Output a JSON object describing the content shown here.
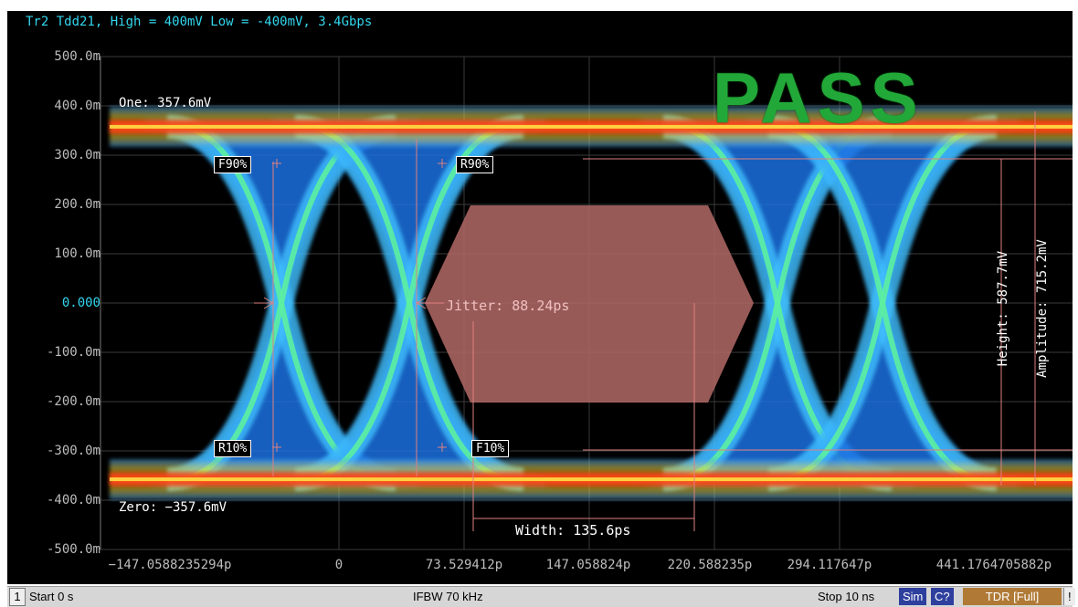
{
  "trace_title": "Tr2 Tdd21, High = 400mV Low = -400mV, 3.4Gbps",
  "pass_label": "PASS",
  "y_axis": {
    "ticks": [
      "500.0m",
      "400.0m",
      "300.0m",
      "200.0m",
      "100.0m",
      "0.000",
      "-100.0m",
      "-200.0m",
      "-300.0m",
      "-400.0m",
      "-500.0m"
    ],
    "tick_values": [
      500,
      400,
      300,
      200,
      100,
      0,
      -100,
      -200,
      -300,
      -400,
      -500
    ],
    "range": [
      -500,
      500
    ]
  },
  "x_axis": {
    "ticks": [
      "−147.0588235294p",
      "0",
      "73.529412p",
      "147.058824p",
      "220.588235p",
      "294.117647p",
      "441.1764705882p"
    ],
    "tick_values": [
      -147.0588235294,
      0,
      73.529412,
      147.058824,
      220.588235,
      294.117647,
      441.1764705882
    ]
  },
  "markers": {
    "one_level": "One: 357.6mV",
    "zero_level": "Zero: −357.6mV",
    "f90": "F90%",
    "r90": "R90%",
    "r10": "R10%",
    "f10": "F10%",
    "jitter": "Jitter: 88.24ps",
    "width": "Width: 135.6ps",
    "height": "Height: 587.7mV",
    "amplitude": "Amplitude: 715.2mV"
  },
  "status_bar": {
    "channel": "1",
    "start": "Start 0 s",
    "ifbw": "IFBW 70 kHz",
    "stop": "Stop 10 ns",
    "sim": "Sim",
    "cal": "C?",
    "tdr": "TDR [Full]",
    "excl": "!"
  },
  "colors": {
    "trace_title": "#33d6ee",
    "pass": "#22a838",
    "mask": "#b36a66",
    "marker_lines": "#e08080",
    "eye_core": "#3aa0ff",
    "eye_hot": "#ff4020"
  }
}
